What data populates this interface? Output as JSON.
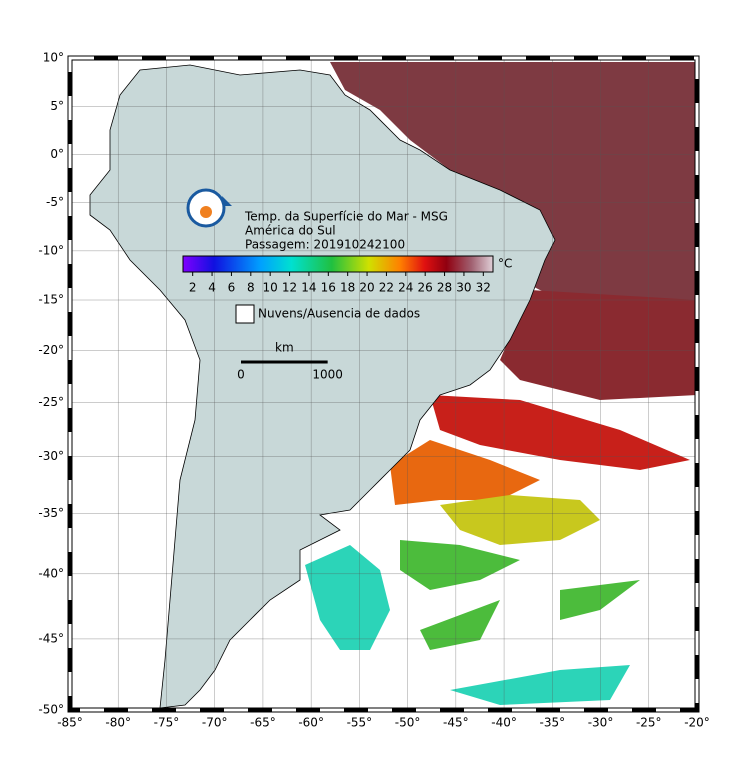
{
  "map": {
    "lon_ticks": [
      {
        "value": -85,
        "label": "-85°"
      },
      {
        "value": -80,
        "label": "-80°"
      },
      {
        "value": -75,
        "label": "-75°"
      },
      {
        "value": -70,
        "label": "-70°"
      },
      {
        "value": -65,
        "label": "-65°"
      },
      {
        "value": -60,
        "label": "-60°"
      },
      {
        "value": -55,
        "label": "-55°"
      },
      {
        "value": -50,
        "label": "-50°"
      },
      {
        "value": -45,
        "label": "-45°"
      },
      {
        "value": -40,
        "label": "-40°"
      },
      {
        "value": -35,
        "label": "-35°"
      },
      {
        "value": -30,
        "label": "-30°"
      },
      {
        "value": -25,
        "label": "-25°"
      },
      {
        "value": -20,
        "label": "-20°"
      }
    ],
    "lat_ticks": [
      {
        "value": 10,
        "label": "10°"
      },
      {
        "value": 5,
        "label": "5°"
      },
      {
        "value": 0,
        "label": "0°"
      },
      {
        "value": -5,
        "label": "-5°"
      },
      {
        "value": -10,
        "label": "-10°"
      },
      {
        "value": -15,
        "label": "-15°"
      },
      {
        "value": -20,
        "label": "-20°"
      },
      {
        "value": -25,
        "label": "-25°"
      },
      {
        "value": -30,
        "label": "-30°"
      },
      {
        "value": -35,
        "label": "-35°"
      },
      {
        "value": -40,
        "label": "-40°"
      },
      {
        "value": -45,
        "label": "-45°"
      },
      {
        "value": -50,
        "label": "-50°"
      }
    ]
  },
  "title_lines": [
    "Temp. da Superfície do Mar - MSG",
    "América do Sul",
    "Passagem: 201910242100"
  ],
  "colorbar": {
    "range": [
      1,
      33
    ],
    "ticks": [
      2,
      4,
      6,
      8,
      10,
      12,
      14,
      16,
      18,
      20,
      22,
      24,
      26,
      28,
      30,
      32
    ],
    "unit": "°C"
  },
  "legend": {
    "label": "Nuvens/Ausencia de dados"
  },
  "scale_bar": {
    "unit": "km",
    "start": 0,
    "end": 1000
  }
}
